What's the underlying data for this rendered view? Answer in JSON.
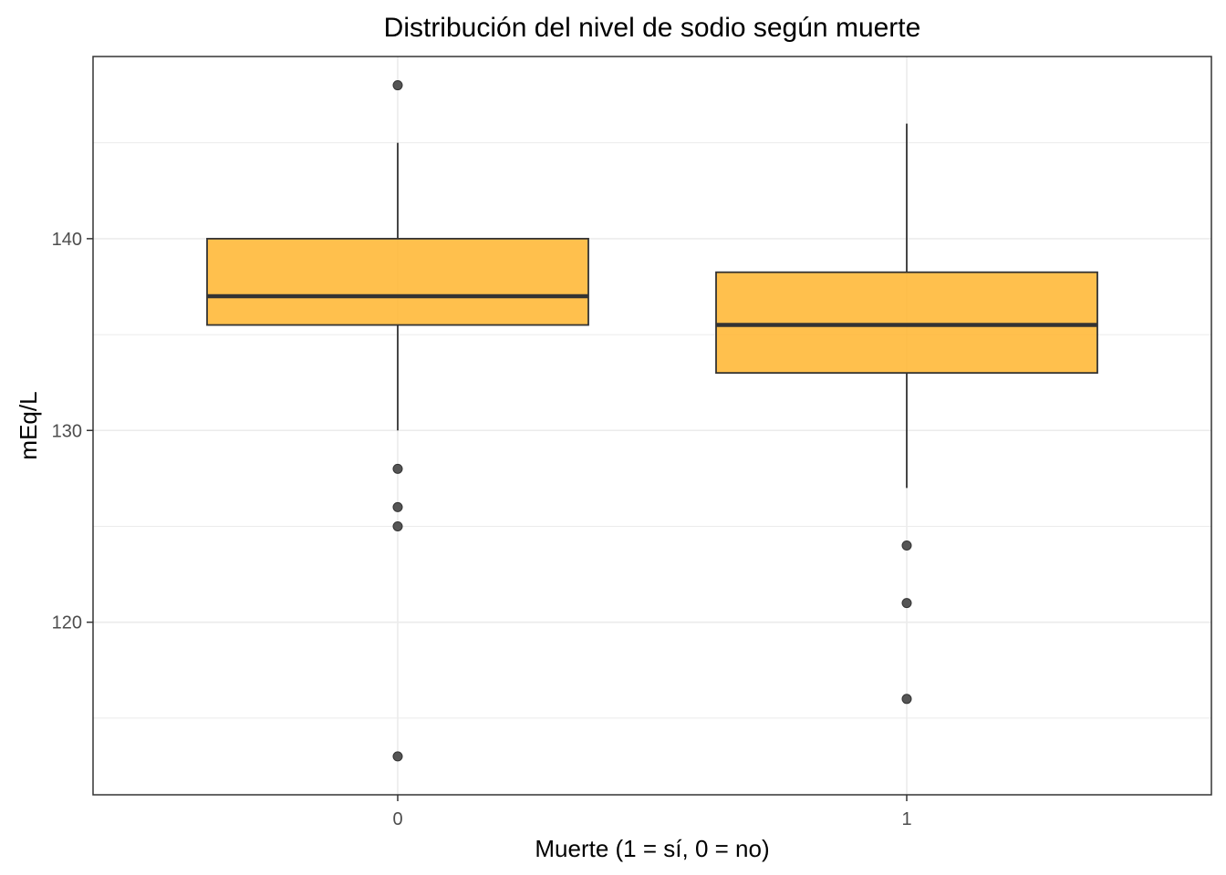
{
  "chart_data": {
    "type": "boxplot",
    "title": "Distribución del nivel de sodio según muerte",
    "xlabel": "Muerte (1 = sí, 0 = no)",
    "ylabel": "mEq/L",
    "ylim": [
      111,
      149.5
    ],
    "y_ticks": [
      120,
      130,
      140
    ],
    "y_minor_ticks": [
      115,
      125,
      135,
      145
    ],
    "grid": true,
    "legend": "none",
    "colors": {
      "box_fill": "#FFB52E",
      "box_fill_opacity": 0.85,
      "box_stroke": "#333333",
      "outlier": "#555555",
      "grid": "#ebebeb"
    },
    "categories": [
      "0",
      "1"
    ],
    "boxes": [
      {
        "category": "0",
        "whisker_low": 130,
        "q1": 135.5,
        "median": 137,
        "q3": 140,
        "whisker_high": 145,
        "outliers": [
          148,
          128,
          126,
          125,
          113
        ]
      },
      {
        "category": "1",
        "whisker_low": 127,
        "q1": 133,
        "median": 135.5,
        "q3": 138.25,
        "whisker_high": 146,
        "outliers": [
          124,
          121,
          116
        ]
      }
    ]
  }
}
